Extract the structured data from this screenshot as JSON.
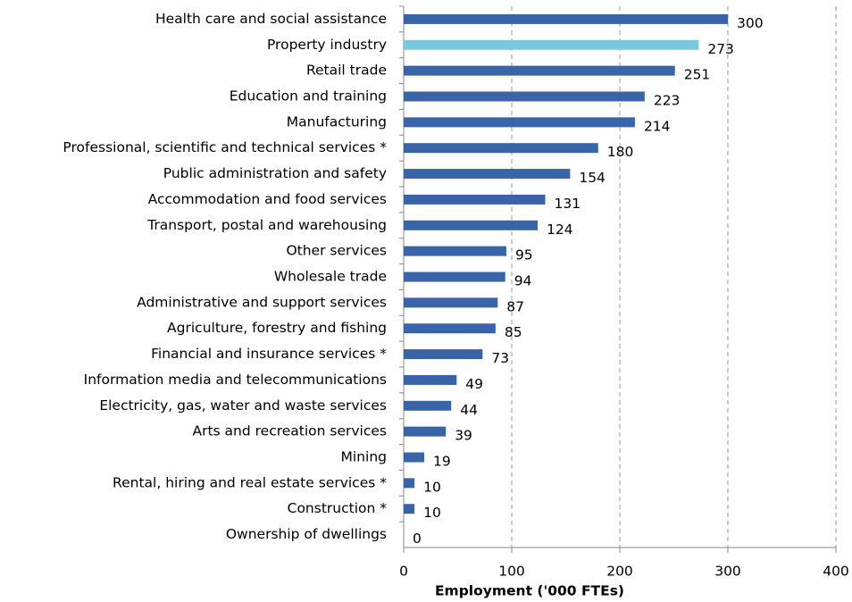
{
  "chart_data": {
    "type": "hbar",
    "categories": [
      "Health care and social assistance",
      "Property industry",
      "Retail trade",
      "Education and training",
      "Manufacturing",
      "Professional, scientific and technical services *",
      "Public administration and safety",
      "Accommodation and food services",
      "Transport, postal and warehousing",
      "Other services",
      "Wholesale trade",
      "Administrative and support services",
      "Agriculture, forestry and fishing",
      "Financial and insurance services *",
      "Information media and telecommunications",
      "Electricity, gas, water and waste services",
      "Arts and recreation services",
      "Mining",
      "Rental, hiring and real estate services *",
      "Construction *",
      "Ownership of dwellings"
    ],
    "values": [
      300,
      273,
      251,
      223,
      214,
      180,
      154,
      131,
      124,
      95,
      94,
      87,
      85,
      73,
      49,
      44,
      39,
      19,
      10,
      10,
      0
    ],
    "colors": [
      "#3a64a8",
      "#78c9e0",
      "#3a64a8",
      "#3a64a8",
      "#3a64a8",
      "#3a64a8",
      "#3a64a8",
      "#3a64a8",
      "#3a64a8",
      "#3a64a8",
      "#3a64a8",
      "#3a64a8",
      "#3a64a8",
      "#3a64a8",
      "#3a64a8",
      "#3a64a8",
      "#3a64a8",
      "#3a64a8",
      "#3a64a8",
      "#3a64a8",
      "#3a64a8"
    ],
    "xlabel": "Employment ('000 FTEs)",
    "xlim": [
      0,
      400
    ],
    "xticks": [
      0,
      100,
      200,
      300,
      400
    ],
    "grid": true
  }
}
